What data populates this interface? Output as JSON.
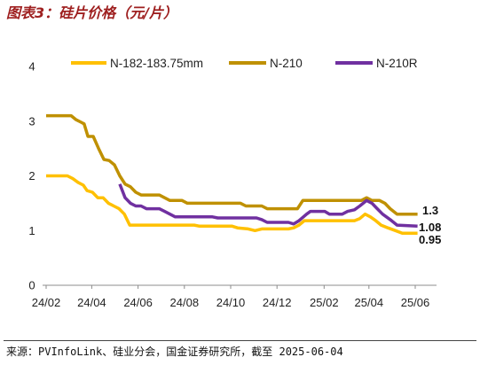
{
  "chart_data": {
    "type": "line",
    "title": "图表3：硅片价格（元/片）",
    "xlabel": "",
    "ylabel": "",
    "ylim": [
      0,
      4
    ],
    "y_ticks": [
      0,
      1,
      2,
      3,
      4
    ],
    "x_ticks": [
      {
        "label": "24/02",
        "date": "2024-02-01"
      },
      {
        "label": "24/04",
        "date": "2024-04-01"
      },
      {
        "label": "24/06",
        "date": "2024-06-01"
      },
      {
        "label": "24/08",
        "date": "2024-08-01"
      },
      {
        "label": "24/10",
        "date": "2024-10-01"
      },
      {
        "label": "24/12",
        "date": "2024-12-01"
      },
      {
        "label": "25/02",
        "date": "2025-02-01"
      },
      {
        "label": "25/04",
        "date": "2025-04-01"
      },
      {
        "label": "25/06",
        "date": "2025-06-01"
      }
    ],
    "grid": false,
    "legend_position": "top",
    "series": [
      {
        "name": "N-182-183.75mm",
        "color": "#FFC000",
        "end_label": "0.95",
        "points": [
          [
            "2024-02-01",
            2.0
          ],
          [
            "2024-02-29",
            2.0
          ],
          [
            "2024-03-07",
            1.95
          ],
          [
            "2024-03-14",
            1.88
          ],
          [
            "2024-03-21",
            1.83
          ],
          [
            "2024-03-26",
            1.73
          ],
          [
            "2024-04-02",
            1.7
          ],
          [
            "2024-04-09",
            1.6
          ],
          [
            "2024-04-16",
            1.6
          ],
          [
            "2024-04-23",
            1.5
          ],
          [
            "2024-04-30",
            1.45
          ],
          [
            "2024-05-07",
            1.4
          ],
          [
            "2024-05-14",
            1.3
          ],
          [
            "2024-05-21",
            1.1
          ],
          [
            "2024-08-14",
            1.1
          ],
          [
            "2024-08-21",
            1.08
          ],
          [
            "2024-10-03",
            1.08
          ],
          [
            "2024-10-10",
            1.05
          ],
          [
            "2024-10-24",
            1.03
          ],
          [
            "2024-11-02",
            1.0
          ],
          [
            "2024-11-11",
            1.03
          ],
          [
            "2024-12-16",
            1.03
          ],
          [
            "2024-12-23",
            1.05
          ],
          [
            "2024-12-30",
            1.1
          ],
          [
            "2025-01-06",
            1.18
          ],
          [
            "2025-03-13",
            1.18
          ],
          [
            "2025-03-20",
            1.22
          ],
          [
            "2025-03-27",
            1.3
          ],
          [
            "2025-04-03",
            1.25
          ],
          [
            "2025-04-10",
            1.18
          ],
          [
            "2025-04-17",
            1.1
          ],
          [
            "2025-04-26",
            1.05
          ],
          [
            "2025-05-06",
            1.0
          ],
          [
            "2025-05-15",
            0.95
          ],
          [
            "2025-06-04",
            0.95
          ]
        ]
      },
      {
        "name": "N-210",
        "color": "#BF9000",
        "end_label": "1.3",
        "points": [
          [
            "2024-02-01",
            3.1
          ],
          [
            "2024-03-05",
            3.1
          ],
          [
            "2024-03-11",
            3.03
          ],
          [
            "2024-03-18",
            2.98
          ],
          [
            "2024-03-22",
            2.95
          ],
          [
            "2024-03-27",
            2.72
          ],
          [
            "2024-04-03",
            2.72
          ],
          [
            "2024-04-10",
            2.5
          ],
          [
            "2024-04-17",
            2.3
          ],
          [
            "2024-04-24",
            2.28
          ],
          [
            "2024-05-01",
            2.2
          ],
          [
            "2024-05-08",
            2.0
          ],
          [
            "2024-05-15",
            1.85
          ],
          [
            "2024-05-22",
            1.8
          ],
          [
            "2024-05-29",
            1.7
          ],
          [
            "2024-06-05",
            1.65
          ],
          [
            "2024-06-29",
            1.65
          ],
          [
            "2024-07-06",
            1.6
          ],
          [
            "2024-07-13",
            1.55
          ],
          [
            "2024-07-29",
            1.55
          ],
          [
            "2024-08-05",
            1.5
          ],
          [
            "2024-10-14",
            1.5
          ],
          [
            "2024-10-21",
            1.45
          ],
          [
            "2024-11-11",
            1.45
          ],
          [
            "2024-11-18",
            1.4
          ],
          [
            "2024-12-28",
            1.4
          ],
          [
            "2025-01-04",
            1.55
          ],
          [
            "2025-03-22",
            1.55
          ],
          [
            "2025-03-29",
            1.6
          ],
          [
            "2025-04-05",
            1.55
          ],
          [
            "2025-04-15",
            1.55
          ],
          [
            "2025-04-22",
            1.5
          ],
          [
            "2025-04-29",
            1.4
          ],
          [
            "2025-05-08",
            1.3
          ],
          [
            "2025-06-04",
            1.3
          ]
        ]
      },
      {
        "name": "N-210R",
        "color": "#7030A0",
        "end_label": "1.08",
        "points": [
          [
            "2024-05-08",
            1.85
          ],
          [
            "2024-05-15",
            1.6
          ],
          [
            "2024-05-22",
            1.5
          ],
          [
            "2024-05-29",
            1.45
          ],
          [
            "2024-06-05",
            1.45
          ],
          [
            "2024-06-12",
            1.4
          ],
          [
            "2024-06-29",
            1.4
          ],
          [
            "2024-07-06",
            1.35
          ],
          [
            "2024-07-13",
            1.3
          ],
          [
            "2024-07-20",
            1.25
          ],
          [
            "2024-09-07",
            1.25
          ],
          [
            "2024-09-14",
            1.23
          ],
          [
            "2024-11-04",
            1.23
          ],
          [
            "2024-11-11",
            1.2
          ],
          [
            "2024-11-18",
            1.15
          ],
          [
            "2024-12-16",
            1.15
          ],
          [
            "2024-12-23",
            1.12
          ],
          [
            "2024-12-30",
            1.18
          ],
          [
            "2025-01-09",
            1.3
          ],
          [
            "2025-01-14",
            1.35
          ],
          [
            "2025-02-02",
            1.35
          ],
          [
            "2025-02-08",
            1.3
          ],
          [
            "2025-02-25",
            1.3
          ],
          [
            "2025-03-04",
            1.35
          ],
          [
            "2025-03-13",
            1.38
          ],
          [
            "2025-03-20",
            1.45
          ],
          [
            "2025-03-29",
            1.55
          ],
          [
            "2025-04-05",
            1.5
          ],
          [
            "2025-04-12",
            1.4
          ],
          [
            "2025-04-19",
            1.3
          ],
          [
            "2025-04-29",
            1.2
          ],
          [
            "2025-05-08",
            1.1
          ],
          [
            "2025-06-04",
            1.08
          ]
        ]
      }
    ]
  },
  "source": "来源：PVInfoLink、硅业分会，国金证券研究所，截至 2025-06-04"
}
